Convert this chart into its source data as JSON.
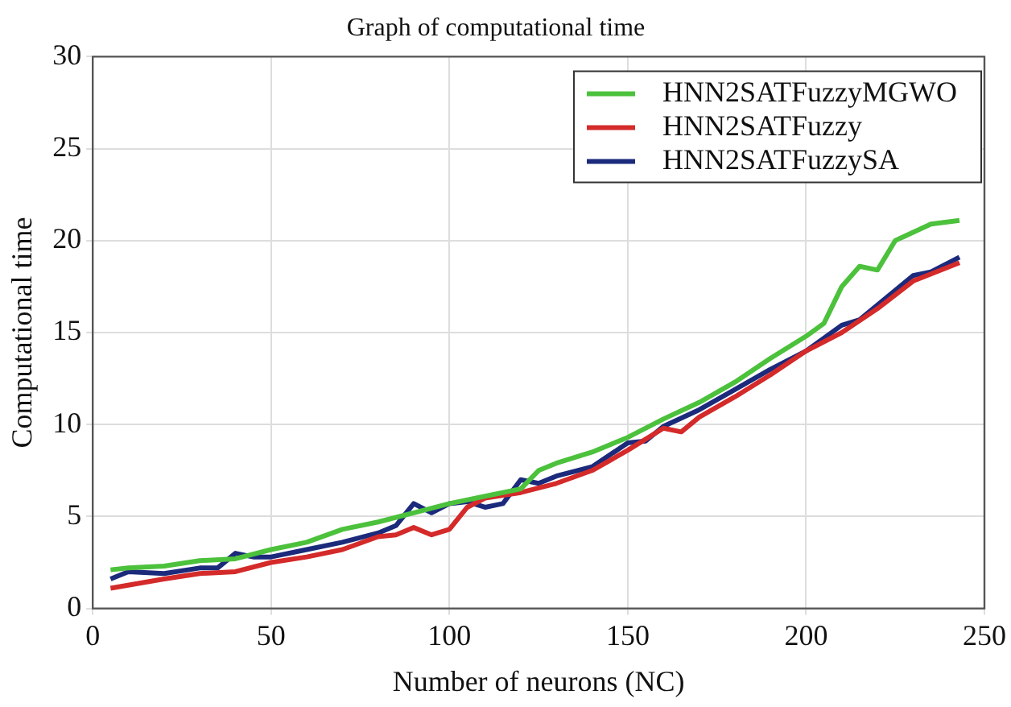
{
  "chart_data": {
    "type": "line",
    "title": "Graph of computational time",
    "xlabel": "Number of neurons (NC)",
    "ylabel": "Computational time",
    "xlim": [
      0,
      250
    ],
    "xticks": [
      0,
      50,
      100,
      150,
      200,
      250
    ],
    "ylim": [
      0,
      30
    ],
    "yticks": [
      0,
      5,
      10,
      15,
      20,
      25,
      30
    ],
    "grid": true,
    "legend": "top right",
    "marker": "none",
    "series": [
      {
        "name": "HNN2SATFuzzyMGWO",
        "color": "#4cc13c",
        "x": [
          5,
          10,
          20,
          30,
          40,
          50,
          60,
          70,
          80,
          90,
          100,
          110,
          120,
          125,
          130,
          140,
          150,
          160,
          170,
          180,
          190,
          200,
          205,
          210,
          215,
          220,
          225,
          235,
          243
        ],
        "values": [
          2.1,
          2.2,
          2.3,
          2.6,
          2.7,
          3.2,
          3.6,
          4.3,
          4.7,
          5.2,
          5.7,
          6.1,
          6.5,
          7.5,
          7.9,
          8.5,
          9.3,
          10.3,
          11.2,
          12.3,
          13.6,
          14.8,
          15.5,
          17.5,
          18.6,
          18.4,
          20.0,
          20.9,
          21.1
        ]
      },
      {
        "name": "HNN2SATFuzzy",
        "color": "#d42a2a",
        "x": [
          5,
          20,
          30,
          40,
          50,
          60,
          70,
          80,
          85,
          90,
          95,
          100,
          105,
          110,
          120,
          130,
          140,
          150,
          160,
          165,
          170,
          180,
          190,
          200,
          210,
          220,
          230,
          243
        ],
        "values": [
          1.1,
          1.6,
          1.9,
          2.0,
          2.5,
          2.8,
          3.2,
          3.9,
          4.0,
          4.4,
          4.0,
          4.3,
          5.5,
          6.0,
          6.3,
          6.8,
          7.5,
          8.6,
          9.8,
          9.6,
          10.4,
          11.5,
          12.7,
          14.0,
          15.0,
          16.3,
          17.8,
          18.8
        ]
      },
      {
        "name": "HNN2SATFuzzySA",
        "color": "#1c2a7c",
        "x": [
          5,
          10,
          20,
          30,
          35,
          40,
          45,
          50,
          60,
          70,
          80,
          85,
          90,
          95,
          100,
          105,
          110,
          115,
          120,
          125,
          130,
          140,
          150,
          155,
          160,
          170,
          180,
          190,
          200,
          210,
          215,
          220,
          230,
          235,
          243
        ],
        "values": [
          1.6,
          2.0,
          1.9,
          2.2,
          2.2,
          3.0,
          2.8,
          2.8,
          3.2,
          3.6,
          4.1,
          4.5,
          5.7,
          5.2,
          5.7,
          5.8,
          5.5,
          5.7,
          7.0,
          6.8,
          7.2,
          7.7,
          9.0,
          9.1,
          9.9,
          10.8,
          11.9,
          13.0,
          14.0,
          15.4,
          15.7,
          16.5,
          18.1,
          18.3,
          19.1
        ]
      }
    ]
  }
}
